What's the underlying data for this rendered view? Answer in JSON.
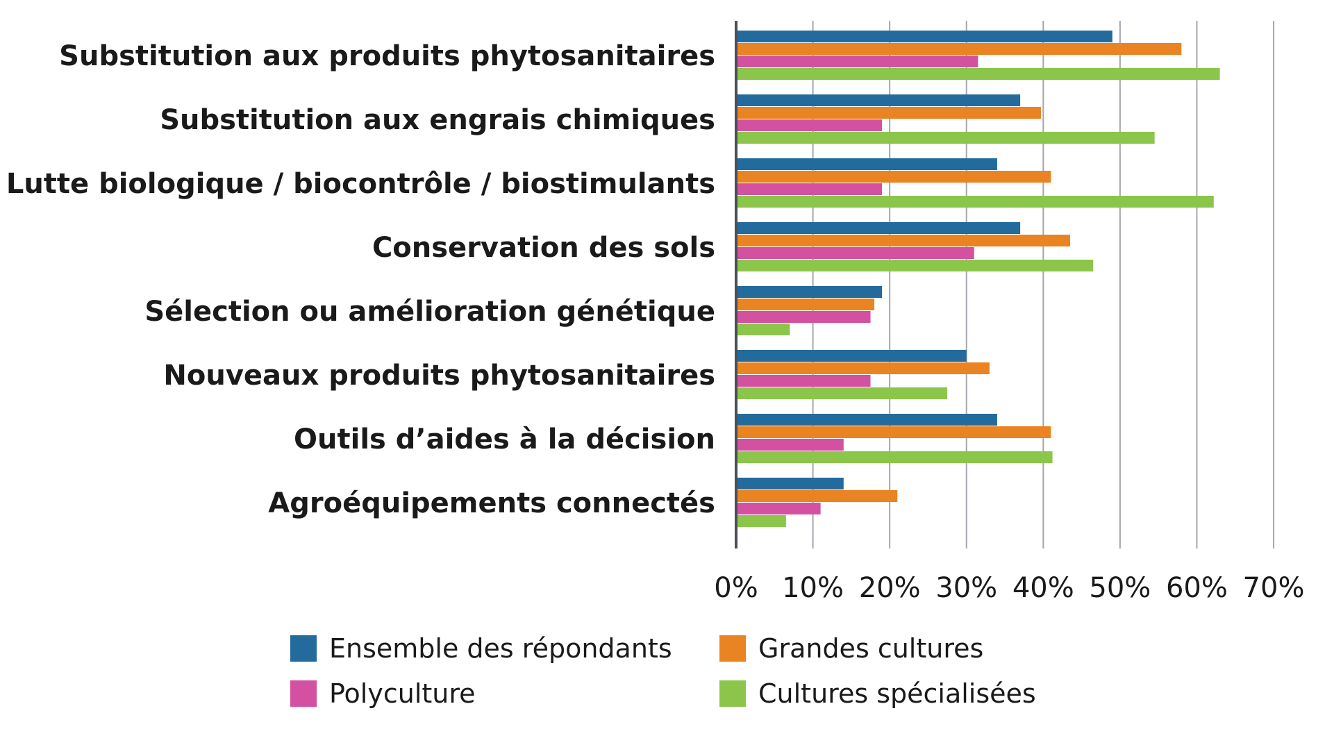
{
  "chart_data": {
    "type": "bar",
    "orientation": "horizontal",
    "title": "",
    "xlabel": "",
    "ylabel": "",
    "categories": [
      "Substitution aux produits phytosanitaires",
      "Substitution aux engrais chimiques",
      "Lutte biologique / biocontrôle / biostimulants",
      "Conservation des sols",
      "Sélection ou amélioration génétique",
      "Nouveaux produits phytosanitaires",
      "Outils d’aides à la décision",
      "Agroéquipements connectés"
    ],
    "series": [
      {
        "name": "Ensemble des répondants",
        "color": "#236b9c",
        "values": [
          49,
          37,
          34,
          37,
          19,
          30,
          34,
          14
        ]
      },
      {
        "name": "Grandes cultures",
        "color": "#ea8322",
        "values": [
          58,
          39.7,
          41,
          43.5,
          18,
          33,
          41,
          21
        ]
      },
      {
        "name": "Polyculture",
        "color": "#d351a0",
        "values": [
          31.5,
          19,
          19,
          31,
          17.5,
          17.5,
          14,
          11
        ]
      },
      {
        "name": "Cultures spécialisées",
        "color": "#8bc64b",
        "values": [
          63,
          54.5,
          62.2,
          46.5,
          7,
          27.5,
          41.2,
          6.5
        ]
      }
    ],
    "xlim": [
      0,
      70
    ],
    "xticks": [
      "0%",
      "10%",
      "20%",
      "30%",
      "40%",
      "50%",
      "60%",
      "70%"
    ],
    "grid": true,
    "legend_position": "bottom"
  }
}
